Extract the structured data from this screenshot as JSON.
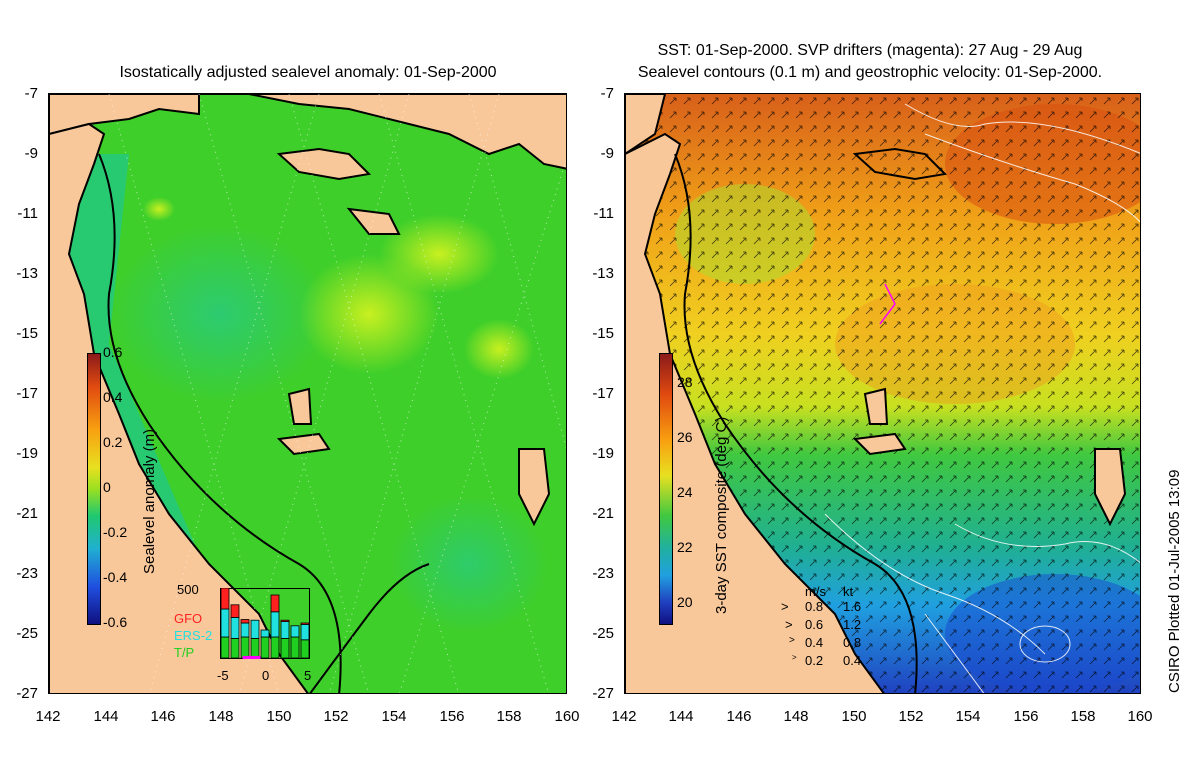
{
  "left_panel": {
    "title": "Isostatically adjusted sealevel anomaly: 01-Sep-2000",
    "y_ticks": [
      "-7",
      "-9",
      "-11",
      "-13",
      "-15",
      "-17",
      "-19",
      "-21",
      "-23",
      "-25",
      "-27"
    ],
    "x_ticks": [
      "142",
      "144",
      "146",
      "148",
      "150",
      "152",
      "154",
      "156",
      "158",
      "160"
    ],
    "colorbar": {
      "label": "Sealevel anomaly (m)",
      "ticks": [
        "0.6",
        "0.4",
        "0.2",
        "0",
        "-0.2",
        "-0.4",
        "-0.6"
      ]
    },
    "inset": {
      "y_max_label": "500",
      "x_ticks": [
        "-5",
        "0",
        "5"
      ],
      "legend": [
        {
          "label": "GFO",
          "color": "#ff2020"
        },
        {
          "label": "ERS-2",
          "color": "#20e0e0"
        },
        {
          "label": "T/P",
          "color": "#20d020"
        }
      ],
      "bars": [
        {
          "tp": 0.3,
          "ers": 0.4,
          "gfo": 0.3
        },
        {
          "tp": 0.28,
          "ers": 0.3,
          "gfo": 0.18
        },
        {
          "tp": 0.3,
          "ers": 0.2,
          "gfo": 0.05
        },
        {
          "tp": 0.28,
          "ers": 0.26,
          "gfo": 0.0
        },
        {
          "tp": 0.3,
          "ers": 0.1,
          "gfo": 0.0
        },
        {
          "tp": 0.3,
          "ers": 0.36,
          "gfo": 0.24
        },
        {
          "tp": 0.28,
          "ers": 0.24,
          "gfo": 0.02
        },
        {
          "tp": 0.3,
          "ers": 0.16,
          "gfo": 0.0
        },
        {
          "tp": 0.26,
          "ers": 0.22,
          "gfo": 0.02
        }
      ]
    }
  },
  "right_panel": {
    "title_line1": "SST: 01-Sep-2000. SVP drifters (magenta): 27 Aug - 29 Aug",
    "title_line2": "Sealevel contours (0.1 m) and geostrophic velocity: 01-Sep-2000.",
    "y_ticks": [
      "-7",
      "-9",
      "-11",
      "-13",
      "-15",
      "-17",
      "-19",
      "-21",
      "-23",
      "-25",
      "-27"
    ],
    "x_ticks": [
      "142",
      "144",
      "146",
      "148",
      "150",
      "152",
      "154",
      "156",
      "158",
      "160"
    ],
    "colorbar": {
      "label": "3-day SST composite (deg C)",
      "ticks": [
        "28",
        "26",
        "24",
        "22",
        "20"
      ]
    },
    "velocity_legend": {
      "header_ms": "m/s",
      "header_kt": "kt",
      "rows": [
        {
          "ms": "0.8",
          "kt": "1.6"
        },
        {
          "ms": "0.6",
          "kt": "1.2"
        },
        {
          "ms": "0.4",
          "kt": "0.8"
        },
        {
          "ms": "0.2",
          "kt": "0.4"
        }
      ]
    }
  },
  "footer": "CSIRO Plotted 01-Jul-2005 13:09",
  "colors": {
    "land": "#f9c89a",
    "sla_base": "#3fcf2a",
    "coastline": "#000000",
    "drifter": "#ff00ff"
  }
}
